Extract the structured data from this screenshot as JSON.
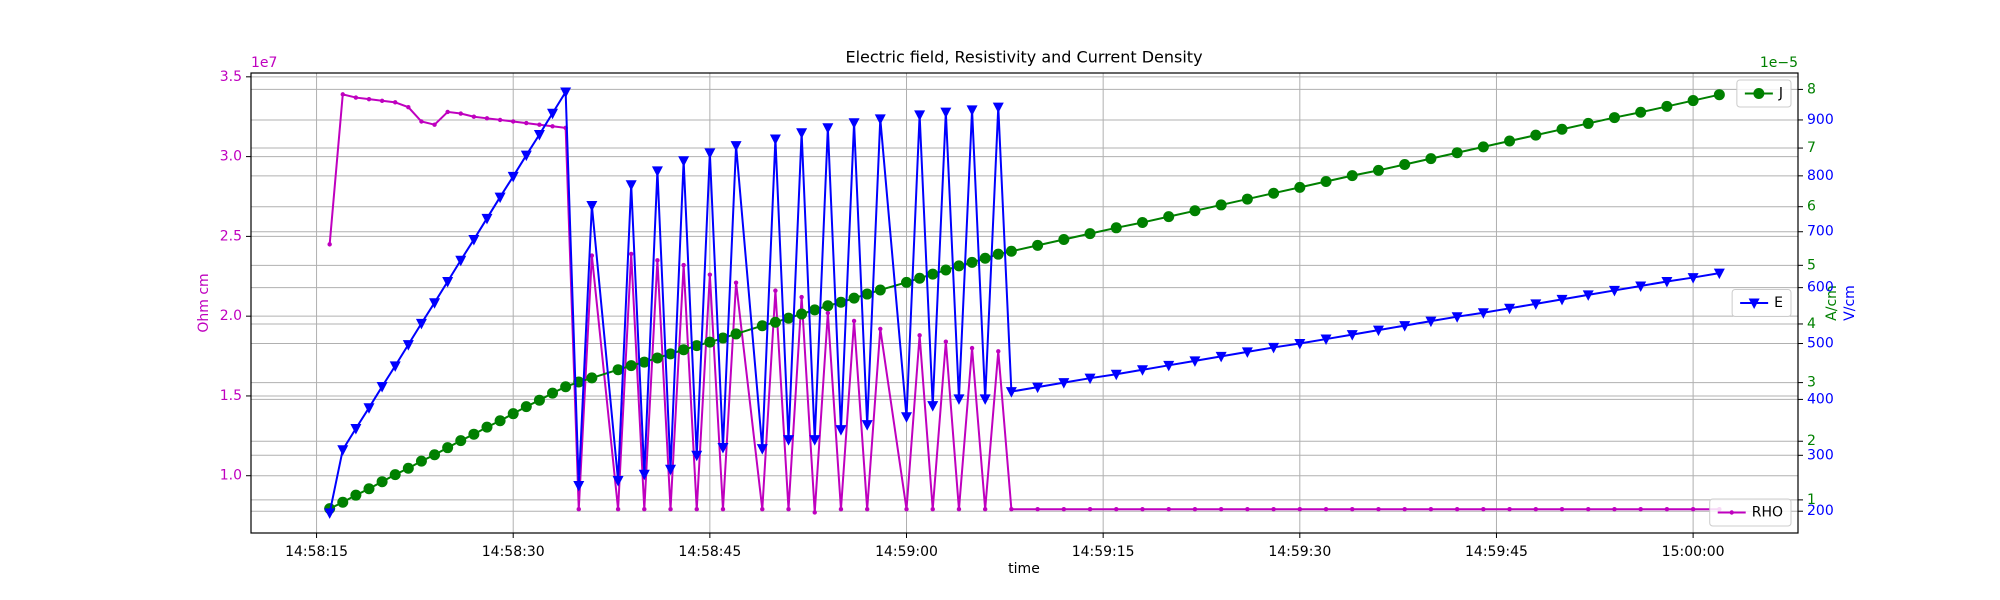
{
  "chart_data": {
    "type": "line",
    "title": "Electric field, Resistivity and Current Density",
    "xlabel": "time",
    "ylabel": "Ohm cm",
    "y2label": "A/cm",
    "y3label": "V/cm",
    "y_offset": "1e7",
    "y2_offset": "1e−5",
    "grid": true,
    "x": [
      "14:58:16",
      "14:58:17",
      "14:58:18",
      "14:58:19",
      "14:58:20",
      "14:58:21",
      "14:58:22",
      "14:58:23",
      "14:58:24",
      "14:58:25",
      "14:58:26",
      "14:58:27",
      "14:58:28",
      "14:58:29",
      "14:58:30",
      "14:58:31",
      "14:58:32",
      "14:58:33",
      "14:58:34",
      "14:58:35",
      "14:58:36",
      "14:58:38",
      "14:58:39",
      "14:58:40",
      "14:58:41",
      "14:58:42",
      "14:58:43",
      "14:58:44",
      "14:58:45",
      "14:58:46",
      "14:58:47",
      "14:58:49",
      "14:58:50",
      "14:58:51",
      "14:58:52",
      "14:58:53",
      "14:58:54",
      "14:58:55",
      "14:58:56",
      "14:58:57",
      "14:58:58",
      "14:59:00",
      "14:59:01",
      "14:59:02",
      "14:59:03",
      "14:59:04",
      "14:59:05",
      "14:59:06",
      "14:59:07",
      "14:59:08",
      "14:59:10",
      "14:59:12",
      "14:59:14",
      "14:59:16",
      "14:59:18",
      "14:59:20",
      "14:59:22",
      "14:59:24",
      "14:59:26",
      "14:59:28",
      "14:59:30",
      "14:59:32",
      "14:59:34",
      "14:59:36",
      "14:59:38",
      "14:59:40",
      "14:59:42",
      "14:59:44",
      "14:59:46",
      "14:59:48",
      "14:59:50",
      "14:59:52",
      "14:59:54",
      "14:59:56",
      "14:59:58",
      "15:00:00",
      "15:00:02"
    ],
    "xlim": [
      "14:58:10",
      "15:00:08"
    ],
    "xticks": [
      "14:58:15",
      "14:58:30",
      "14:58:45",
      "14:59:00",
      "14:59:15",
      "14:59:30",
      "14:59:45",
      "15:00:00"
    ],
    "ylim": [
      0.641,
      3.524
    ],
    "yticks": [
      {
        "value": 1,
        "label": "1.0"
      },
      1.5,
      {
        "value": 2,
        "label": "2.0"
      },
      2.5,
      {
        "value": 3,
        "label": "3.0"
      },
      3.5
    ],
    "y2lim": [
      0.435,
      8.28
    ],
    "y2ticks": [
      1,
      2,
      3,
      4,
      5,
      6,
      7,
      8
    ],
    "y3lim": [
      161,
      984
    ],
    "y3ticks": [
      200,
      300,
      400,
      500,
      600,
      700,
      800,
      900
    ],
    "series": [
      {
        "name": "RHO",
        "color": "#bf00bf",
        "axis": "y",
        "marker": "point",
        "legend": "lower right",
        "values": [
          2.45,
          3.39,
          3.37,
          3.36,
          3.35,
          3.34,
          3.31,
          3.22,
          3.2,
          3.28,
          3.27,
          3.25,
          3.24,
          3.23,
          3.22,
          3.21,
          3.2,
          3.19,
          3.18,
          0.79,
          2.38,
          0.79,
          2.39,
          0.79,
          2.35,
          0.79,
          2.32,
          0.79,
          2.26,
          0.79,
          2.21,
          0.79,
          2.16,
          0.79,
          2.12,
          0.77,
          2.02,
          0.79,
          1.97,
          0.79,
          1.92,
          0.79,
          1.88,
          0.79,
          1.84,
          0.79,
          1.8,
          0.79,
          1.78,
          0.79,
          0.79,
          0.79,
          0.79,
          0.79,
          0.79,
          0.79,
          0.79,
          0.79,
          0.79,
          0.79,
          0.79,
          0.79,
          0.79,
          0.79,
          0.79,
          0.79,
          0.79,
          0.79,
          0.79,
          0.79,
          0.79,
          0.79,
          0.79,
          0.79,
          0.79,
          0.79,
          0.79
        ]
      },
      {
        "name": "J",
        "color": "#008000",
        "axis": "y2",
        "marker": "circle",
        "legend": "upper right",
        "values": [
          0.85,
          0.96,
          1.08,
          1.19,
          1.31,
          1.43,
          1.54,
          1.66,
          1.77,
          1.89,
          2.01,
          2.12,
          2.24,
          2.35,
          2.47,
          2.59,
          2.7,
          2.82,
          2.93,
          3.01,
          3.08,
          3.22,
          3.29,
          3.35,
          3.42,
          3.49,
          3.56,
          3.63,
          3.69,
          3.76,
          3.83,
          3.97,
          4.03,
          4.1,
          4.17,
          4.24,
          4.31,
          4.37,
          4.44,
          4.51,
          4.58,
          4.71,
          4.78,
          4.85,
          4.92,
          4.99,
          5.05,
          5.12,
          5.19,
          5.24,
          5.34,
          5.44,
          5.54,
          5.64,
          5.73,
          5.83,
          5.93,
          6.03,
          6.13,
          6.23,
          6.33,
          6.43,
          6.53,
          6.62,
          6.72,
          6.82,
          6.92,
          7.02,
          7.12,
          7.22,
          7.32,
          7.42,
          7.52,
          7.61,
          7.71,
          7.81,
          7.91
        ]
      },
      {
        "name": "E",
        "color": "#0000ff",
        "axis": "y3",
        "marker": "triangle_down",
        "legend": "center right",
        "values": [
          197,
          310,
          348,
          385,
          423,
          460,
          498,
          536,
          573,
          611,
          649,
          686,
          724,
          762,
          799,
          837,
          874,
          912,
          950,
          246,
          747,
          255,
          784,
          266,
          809,
          275,
          827,
          300,
          841,
          314,
          854,
          312,
          866,
          328,
          877,
          328,
          886,
          346,
          895,
          355,
          902,
          369,
          909,
          389,
          914,
          401,
          918,
          401,
          923,
          414,
          422,
          430,
          438,
          445,
          453,
          461,
          469,
          477,
          485,
          493,
          500,
          508,
          516,
          524,
          532,
          540,
          548,
          555,
          563,
          571,
          579,
          587,
          595,
          603,
          611,
          618,
          626
        ]
      }
    ]
  }
}
